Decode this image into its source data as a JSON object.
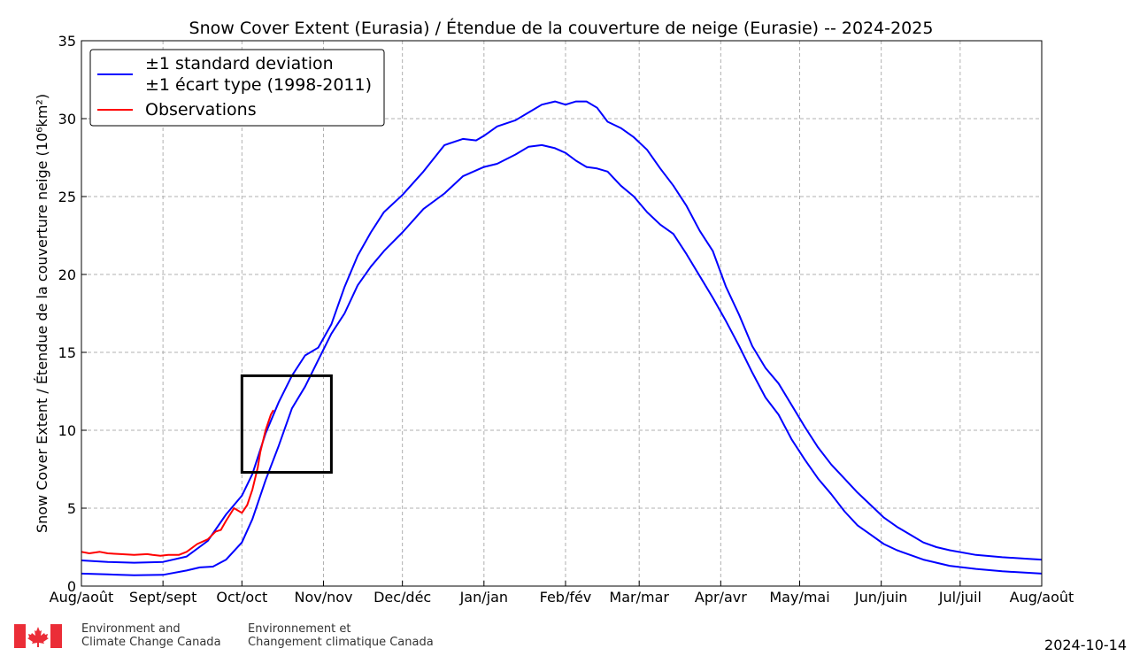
{
  "chart_data": {
    "type": "line",
    "title": "Snow Cover Extent (Eurasia) / Étendue de la couverture de neige (Eurasie) -- 2024-2025",
    "ylabel": "Snow Cover Extent / Étendue de la couverture neige (10⁶km²)",
    "ylim": [
      0,
      35
    ],
    "yticks": [
      0,
      5,
      10,
      15,
      20,
      25,
      30,
      35
    ],
    "xlim": [
      0,
      365
    ],
    "x_ticks": [
      {
        "day": 0,
        "label": "Aug/août"
      },
      {
        "day": 31,
        "label": "Sept/sept"
      },
      {
        "day": 61,
        "label": "Oct/oct"
      },
      {
        "day": 92,
        "label": "Nov/nov"
      },
      {
        "day": 122,
        "label": "Dec/déc"
      },
      {
        "day": 153,
        "label": "Jan/jan"
      },
      {
        "day": 184,
        "label": "Feb/fév"
      },
      {
        "day": 212,
        "label": "Mar/mar"
      },
      {
        "day": 243,
        "label": "Apr/avr"
      },
      {
        "day": 273,
        "label": "May/mai"
      },
      {
        "day": 304,
        "label": "Jun/juin"
      },
      {
        "day": 334,
        "label": "Jul/juil"
      },
      {
        "day": 365,
        "label": "Aug/août"
      }
    ],
    "grid": true,
    "legend_position": "top-left",
    "series": [
      {
        "name": "±1 standard deviation\n±1 écart type (1998-2011)",
        "color": "#0000ff",
        "upper_x": [
          0,
          10,
          20,
          31,
          40,
          48,
          55,
          61,
          65,
          70,
          75,
          80,
          85,
          90,
          95,
          100,
          105,
          110,
          115,
          122,
          130,
          138,
          145,
          150,
          153,
          158,
          165,
          170,
          175,
          180,
          184,
          188,
          192,
          196,
          200,
          205,
          210,
          215,
          220,
          225,
          230,
          235,
          240,
          245,
          250,
          255,
          260,
          265,
          270,
          275,
          280,
          285,
          290,
          295,
          300,
          305,
          310,
          315,
          320,
          325,
          330,
          340,
          350,
          360,
          365
        ],
        "upper_y": [
          1.65,
          1.55,
          1.5,
          1.55,
          1.9,
          2.9,
          4.6,
          5.8,
          7.2,
          9.8,
          11.8,
          13.5,
          14.8,
          15.3,
          16.8,
          19.2,
          21.2,
          22.7,
          24.0,
          25.1,
          26.6,
          28.3,
          28.7,
          28.6,
          28.9,
          29.5,
          29.9,
          30.4,
          30.9,
          31.1,
          30.9,
          31.1,
          31.1,
          30.7,
          29.8,
          29.4,
          28.8,
          28.0,
          26.8,
          25.7,
          24.4,
          22.8,
          21.5,
          19.2,
          17.4,
          15.4,
          14.0,
          13.0,
          11.6,
          10.2,
          8.9,
          7.8,
          6.9,
          6.0,
          5.2,
          4.4,
          3.8,
          3.3,
          2.8,
          2.5,
          2.3,
          2.0,
          1.85,
          1.75,
          1.7
        ],
        "lower_x": [
          0,
          10,
          20,
          31,
          40,
          45,
          50,
          55,
          61,
          65,
          70,
          75,
          80,
          85,
          90,
          95,
          100,
          105,
          110,
          115,
          122,
          130,
          138,
          145,
          153,
          158,
          165,
          170,
          175,
          180,
          184,
          188,
          192,
          196,
          200,
          205,
          210,
          215,
          220,
          225,
          230,
          235,
          240,
          245,
          250,
          255,
          260,
          265,
          270,
          275,
          280,
          285,
          290,
          295,
          300,
          305,
          310,
          315,
          320,
          325,
          330,
          340,
          350,
          360,
          365
        ],
        "lower_y": [
          0.8,
          0.75,
          0.7,
          0.72,
          1.0,
          1.2,
          1.25,
          1.7,
          2.8,
          4.3,
          6.8,
          9.0,
          11.4,
          12.8,
          14.5,
          16.2,
          17.5,
          19.3,
          20.5,
          21.5,
          22.7,
          24.2,
          25.2,
          26.3,
          26.9,
          27.1,
          27.7,
          28.2,
          28.3,
          28.1,
          27.8,
          27.3,
          26.9,
          26.8,
          26.6,
          25.7,
          25.0,
          24.0,
          23.2,
          22.6,
          21.3,
          19.9,
          18.5,
          17.0,
          15.4,
          13.7,
          12.1,
          11.0,
          9.4,
          8.1,
          6.9,
          5.9,
          4.8,
          3.9,
          3.3,
          2.7,
          2.3,
          2.0,
          1.7,
          1.5,
          1.3,
          1.1,
          0.95,
          0.85,
          0.8
        ]
      },
      {
        "name": "Observations",
        "color": "#ff0000",
        "x": [
          0,
          3,
          7,
          10,
          15,
          20,
          25,
          27,
          30,
          33,
          37,
          40,
          44,
          48,
          51,
          53,
          55,
          58,
          61,
          63,
          65,
          67,
          68,
          70,
          72,
          73
        ],
        "y": [
          2.2,
          2.1,
          2.2,
          2.1,
          2.05,
          2.0,
          2.05,
          2.0,
          1.95,
          2.0,
          2.0,
          2.2,
          2.7,
          3.0,
          3.5,
          3.6,
          4.2,
          5.0,
          4.7,
          5.2,
          6.2,
          7.6,
          8.6,
          10.0,
          11.0,
          11.3
        ]
      }
    ],
    "annotations": [
      {
        "type": "box",
        "x": [
          61,
          95
        ],
        "y": [
          7.3,
          13.5
        ]
      }
    ]
  },
  "footer": {
    "org_en_line1": "Environment and",
    "org_en_line2": "Climate Change Canada",
    "org_fr_line1": "Environnement et",
    "org_fr_line2": "Changement climatique Canada",
    "date": "2024-10-14",
    "flag_icon": "canada-flag-icon",
    "flag_color": "#eb2d37"
  }
}
